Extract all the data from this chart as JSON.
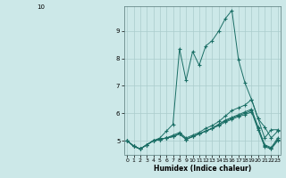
{
  "title": "",
  "xlabel": "Humidex (Indice chaleur)",
  "background_color": "#cce8e8",
  "grid_color": "#aacccc",
  "line_color": "#1a6e65",
  "xlim": [
    -0.5,
    23.5
  ],
  "ylim": [
    4.5,
    9.9
  ],
  "xticks": [
    0,
    1,
    2,
    3,
    4,
    5,
    6,
    7,
    8,
    9,
    10,
    11,
    12,
    13,
    14,
    15,
    16,
    17,
    18,
    19,
    20,
    21,
    22,
    23
  ],
  "yticks": [
    5,
    6,
    7,
    8,
    9
  ],
  "lines": [
    [
      5.0,
      4.8,
      4.7,
      4.85,
      5.0,
      5.1,
      5.35,
      5.6,
      8.35,
      7.2,
      8.25,
      7.75,
      8.45,
      8.65,
      9.0,
      9.45,
      9.75,
      7.95,
      7.1,
      6.5,
      5.8,
      5.5,
      5.1,
      5.35
    ],
    [
      5.0,
      4.8,
      4.7,
      4.85,
      5.0,
      5.05,
      5.1,
      5.2,
      5.3,
      5.1,
      5.2,
      5.3,
      5.45,
      5.55,
      5.7,
      5.9,
      6.1,
      6.2,
      6.3,
      6.5,
      5.8,
      5.1,
      5.4,
      5.4
    ],
    [
      5.0,
      4.8,
      4.7,
      4.85,
      5.0,
      5.05,
      5.1,
      5.15,
      5.25,
      5.05,
      5.15,
      5.25,
      5.35,
      5.45,
      5.6,
      5.75,
      5.85,
      5.95,
      6.05,
      6.15,
      5.5,
      4.85,
      4.75,
      5.1
    ],
    [
      5.0,
      4.8,
      4.7,
      4.85,
      5.0,
      5.05,
      5.1,
      5.15,
      5.25,
      5.05,
      5.15,
      5.25,
      5.35,
      5.45,
      5.6,
      5.72,
      5.82,
      5.92,
      6.0,
      6.1,
      5.45,
      4.82,
      4.72,
      5.05
    ],
    [
      5.0,
      4.8,
      4.7,
      4.85,
      5.0,
      5.05,
      5.1,
      5.15,
      5.25,
      5.05,
      5.15,
      5.25,
      5.35,
      5.45,
      5.55,
      5.68,
      5.78,
      5.88,
      5.95,
      6.05,
      5.4,
      4.78,
      4.7,
      5.0
    ]
  ]
}
